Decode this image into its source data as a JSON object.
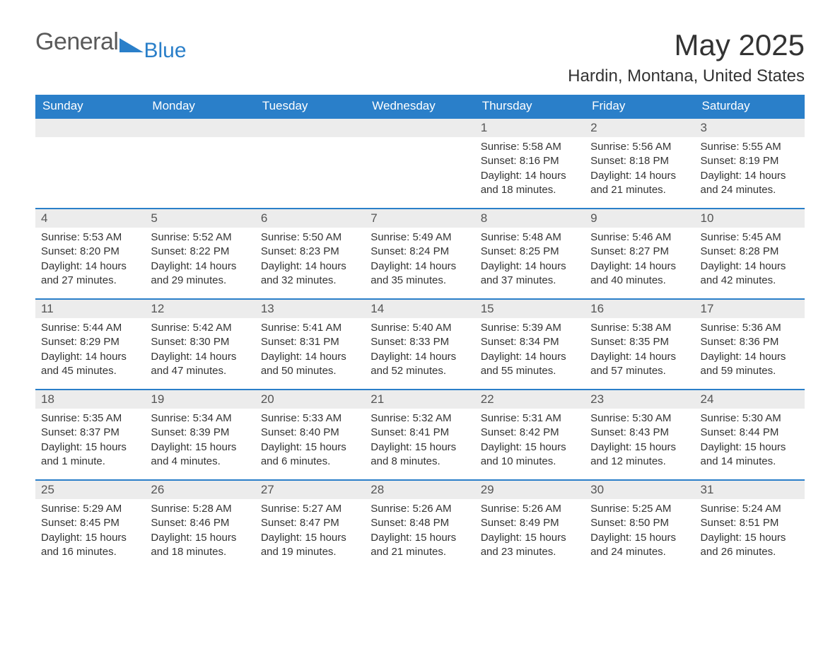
{
  "logo": {
    "word1": "General",
    "word2": "Blue",
    "accent_color": "#2a7fc9",
    "text_color": "#5a5a5a"
  },
  "title": "May 2025",
  "location": "Hardin, Montana, United States",
  "colors": {
    "header_bg": "#2a7fc9",
    "header_text": "#ffffff",
    "daynum_bg": "#ececec",
    "daynum_border": "#2a7fc9",
    "body_text": "#333333",
    "page_bg": "#ffffff"
  },
  "weekdays": [
    "Sunday",
    "Monday",
    "Tuesday",
    "Wednesday",
    "Thursday",
    "Friday",
    "Saturday"
  ],
  "weeks": [
    [
      {
        "empty": true
      },
      {
        "empty": true
      },
      {
        "empty": true
      },
      {
        "empty": true
      },
      {
        "num": "1",
        "sunrise": "Sunrise: 5:58 AM",
        "sunset": "Sunset: 8:16 PM",
        "daylight": "Daylight: 14 hours and 18 minutes."
      },
      {
        "num": "2",
        "sunrise": "Sunrise: 5:56 AM",
        "sunset": "Sunset: 8:18 PM",
        "daylight": "Daylight: 14 hours and 21 minutes."
      },
      {
        "num": "3",
        "sunrise": "Sunrise: 5:55 AM",
        "sunset": "Sunset: 8:19 PM",
        "daylight": "Daylight: 14 hours and 24 minutes."
      }
    ],
    [
      {
        "num": "4",
        "sunrise": "Sunrise: 5:53 AM",
        "sunset": "Sunset: 8:20 PM",
        "daylight": "Daylight: 14 hours and 27 minutes."
      },
      {
        "num": "5",
        "sunrise": "Sunrise: 5:52 AM",
        "sunset": "Sunset: 8:22 PM",
        "daylight": "Daylight: 14 hours and 29 minutes."
      },
      {
        "num": "6",
        "sunrise": "Sunrise: 5:50 AM",
        "sunset": "Sunset: 8:23 PM",
        "daylight": "Daylight: 14 hours and 32 minutes."
      },
      {
        "num": "7",
        "sunrise": "Sunrise: 5:49 AM",
        "sunset": "Sunset: 8:24 PM",
        "daylight": "Daylight: 14 hours and 35 minutes."
      },
      {
        "num": "8",
        "sunrise": "Sunrise: 5:48 AM",
        "sunset": "Sunset: 8:25 PM",
        "daylight": "Daylight: 14 hours and 37 minutes."
      },
      {
        "num": "9",
        "sunrise": "Sunrise: 5:46 AM",
        "sunset": "Sunset: 8:27 PM",
        "daylight": "Daylight: 14 hours and 40 minutes."
      },
      {
        "num": "10",
        "sunrise": "Sunrise: 5:45 AM",
        "sunset": "Sunset: 8:28 PM",
        "daylight": "Daylight: 14 hours and 42 minutes."
      }
    ],
    [
      {
        "num": "11",
        "sunrise": "Sunrise: 5:44 AM",
        "sunset": "Sunset: 8:29 PM",
        "daylight": "Daylight: 14 hours and 45 minutes."
      },
      {
        "num": "12",
        "sunrise": "Sunrise: 5:42 AM",
        "sunset": "Sunset: 8:30 PM",
        "daylight": "Daylight: 14 hours and 47 minutes."
      },
      {
        "num": "13",
        "sunrise": "Sunrise: 5:41 AM",
        "sunset": "Sunset: 8:31 PM",
        "daylight": "Daylight: 14 hours and 50 minutes."
      },
      {
        "num": "14",
        "sunrise": "Sunrise: 5:40 AM",
        "sunset": "Sunset: 8:33 PM",
        "daylight": "Daylight: 14 hours and 52 minutes."
      },
      {
        "num": "15",
        "sunrise": "Sunrise: 5:39 AM",
        "sunset": "Sunset: 8:34 PM",
        "daylight": "Daylight: 14 hours and 55 minutes."
      },
      {
        "num": "16",
        "sunrise": "Sunrise: 5:38 AM",
        "sunset": "Sunset: 8:35 PM",
        "daylight": "Daylight: 14 hours and 57 minutes."
      },
      {
        "num": "17",
        "sunrise": "Sunrise: 5:36 AM",
        "sunset": "Sunset: 8:36 PM",
        "daylight": "Daylight: 14 hours and 59 minutes."
      }
    ],
    [
      {
        "num": "18",
        "sunrise": "Sunrise: 5:35 AM",
        "sunset": "Sunset: 8:37 PM",
        "daylight": "Daylight: 15 hours and 1 minute."
      },
      {
        "num": "19",
        "sunrise": "Sunrise: 5:34 AM",
        "sunset": "Sunset: 8:39 PM",
        "daylight": "Daylight: 15 hours and 4 minutes."
      },
      {
        "num": "20",
        "sunrise": "Sunrise: 5:33 AM",
        "sunset": "Sunset: 8:40 PM",
        "daylight": "Daylight: 15 hours and 6 minutes."
      },
      {
        "num": "21",
        "sunrise": "Sunrise: 5:32 AM",
        "sunset": "Sunset: 8:41 PM",
        "daylight": "Daylight: 15 hours and 8 minutes."
      },
      {
        "num": "22",
        "sunrise": "Sunrise: 5:31 AM",
        "sunset": "Sunset: 8:42 PM",
        "daylight": "Daylight: 15 hours and 10 minutes."
      },
      {
        "num": "23",
        "sunrise": "Sunrise: 5:30 AM",
        "sunset": "Sunset: 8:43 PM",
        "daylight": "Daylight: 15 hours and 12 minutes."
      },
      {
        "num": "24",
        "sunrise": "Sunrise: 5:30 AM",
        "sunset": "Sunset: 8:44 PM",
        "daylight": "Daylight: 15 hours and 14 minutes."
      }
    ],
    [
      {
        "num": "25",
        "sunrise": "Sunrise: 5:29 AM",
        "sunset": "Sunset: 8:45 PM",
        "daylight": "Daylight: 15 hours and 16 minutes."
      },
      {
        "num": "26",
        "sunrise": "Sunrise: 5:28 AM",
        "sunset": "Sunset: 8:46 PM",
        "daylight": "Daylight: 15 hours and 18 minutes."
      },
      {
        "num": "27",
        "sunrise": "Sunrise: 5:27 AM",
        "sunset": "Sunset: 8:47 PM",
        "daylight": "Daylight: 15 hours and 19 minutes."
      },
      {
        "num": "28",
        "sunrise": "Sunrise: 5:26 AM",
        "sunset": "Sunset: 8:48 PM",
        "daylight": "Daylight: 15 hours and 21 minutes."
      },
      {
        "num": "29",
        "sunrise": "Sunrise: 5:26 AM",
        "sunset": "Sunset: 8:49 PM",
        "daylight": "Daylight: 15 hours and 23 minutes."
      },
      {
        "num": "30",
        "sunrise": "Sunrise: 5:25 AM",
        "sunset": "Sunset: 8:50 PM",
        "daylight": "Daylight: 15 hours and 24 minutes."
      },
      {
        "num": "31",
        "sunrise": "Sunrise: 5:24 AM",
        "sunset": "Sunset: 8:51 PM",
        "daylight": "Daylight: 15 hours and 26 minutes."
      }
    ]
  ]
}
